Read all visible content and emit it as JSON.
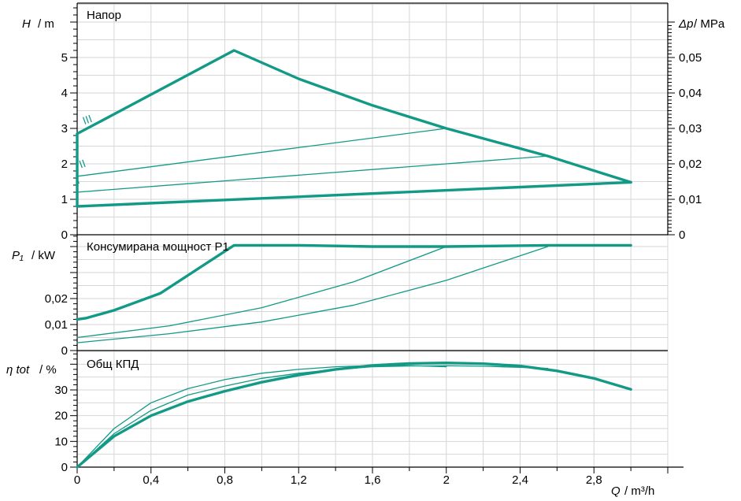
{
  "colors": {
    "curve": "#139a87",
    "grid": "#d6d6d6",
    "axis": "#000000"
  },
  "chart_data": [
    {
      "type": "line",
      "title": "Напор",
      "ylabel_var": "H",
      "ylabel_unit": "/ m",
      "ylabel_right_var": "Δp",
      "ylabel_right_unit": "/ MPa",
      "ylim": [
        0,
        5.5
      ],
      "y_ticks": [
        "0",
        "1",
        "2",
        "3",
        "4",
        "5"
      ],
      "y2_ticks": [
        "0",
        "0,01",
        "0,02",
        "0,03",
        "0,04",
        "0,05"
      ],
      "speed_labels": [
        "I",
        "II",
        "III"
      ],
      "series": [
        {
          "role": "max",
          "x": [
            0,
            0.85,
            1.2,
            1.6,
            2.0,
            2.55,
            3.0
          ],
          "y": [
            2.85,
            5.2,
            4.4,
            3.65,
            3.0,
            2.22,
            1.48
          ]
        },
        {
          "role": "min",
          "x": [
            0,
            3.0
          ],
          "y": [
            0.8,
            1.48
          ]
        },
        {
          "role": "speed-3",
          "x": [
            0,
            2.0
          ],
          "y": [
            1.65,
            3.0
          ]
        },
        {
          "role": "speed-2",
          "x": [
            0,
            2.55
          ],
          "y": [
            1.2,
            2.22
          ]
        }
      ]
    },
    {
      "type": "line",
      "title": "Консумирана мощност P1",
      "ylabel_var": "P₁",
      "ylabel_unit": "/ kW",
      "ylim": [
        0,
        0.042
      ],
      "y_ticks": [
        "0",
        "0,01",
        "0,02"
      ],
      "series": [
        {
          "role": "max",
          "x": [
            0,
            0.05,
            0.2,
            0.45,
            0.85,
            1.2,
            1.6,
            2.0,
            2.55,
            3.0
          ],
          "y": [
            0.012,
            0.0125,
            0.0155,
            0.022,
            0.0405,
            0.0405,
            0.04,
            0.04,
            0.0405,
            0.0405
          ]
        },
        {
          "role": "speed-3",
          "x": [
            0,
            0.5,
            1.0,
            1.5,
            2.0
          ],
          "y": [
            0.005,
            0.0095,
            0.0165,
            0.0265,
            0.04
          ]
        },
        {
          "role": "speed-2",
          "x": [
            0,
            0.5,
            1.0,
            1.5,
            2.0,
            2.55
          ],
          "y": [
            0.003,
            0.0065,
            0.011,
            0.0175,
            0.027,
            0.04
          ]
        }
      ]
    },
    {
      "type": "line",
      "title": "Общ КПД",
      "ylabel_var": "η tot",
      "ylabel_unit": "/ %",
      "ylim": [
        0,
        42
      ],
      "y_ticks": [
        "0",
        "10",
        "20",
        "30"
      ],
      "xlabel_var": "Q",
      "xlabel_unit": "/ m³/h",
      "xlim": [
        0,
        3.2
      ],
      "x_ticks": [
        "0",
        "0,4",
        "0,8",
        "1,2",
        "1,6",
        "2",
        "2,4",
        "2,8"
      ],
      "series": [
        {
          "role": "max",
          "x": [
            0,
            0.2,
            0.4,
            0.6,
            0.8,
            1.0,
            1.2,
            1.4,
            1.6,
            1.8,
            2.0,
            2.2,
            2.4,
            2.6,
            2.8,
            3.0
          ],
          "y": [
            0,
            12,
            20,
            25.5,
            29.5,
            33,
            35.8,
            38,
            39.5,
            40.3,
            40.5,
            40.2,
            39.3,
            37.4,
            34.5,
            30.2
          ]
        },
        {
          "role": "speed-3",
          "x": [
            0,
            0.2,
            0.4,
            0.6,
            0.8,
            1.0,
            1.2,
            1.4,
            1.6,
            1.8,
            2.0
          ],
          "y": [
            0,
            15,
            25,
            30.5,
            34,
            36.5,
            38,
            39,
            39.5,
            39.5,
            39
          ]
        },
        {
          "role": "speed-2",
          "x": [
            0,
            0.2,
            0.4,
            0.6,
            0.8,
            1.0,
            1.2,
            1.4,
            1.6,
            1.8,
            2.0,
            2.2,
            2.4,
            2.55
          ],
          "y": [
            0,
            13,
            22,
            28,
            31.5,
            34.5,
            36.5,
            38,
            39,
            39.3,
            39.4,
            39.2,
            38.8,
            38.4
          ]
        }
      ]
    }
  ]
}
